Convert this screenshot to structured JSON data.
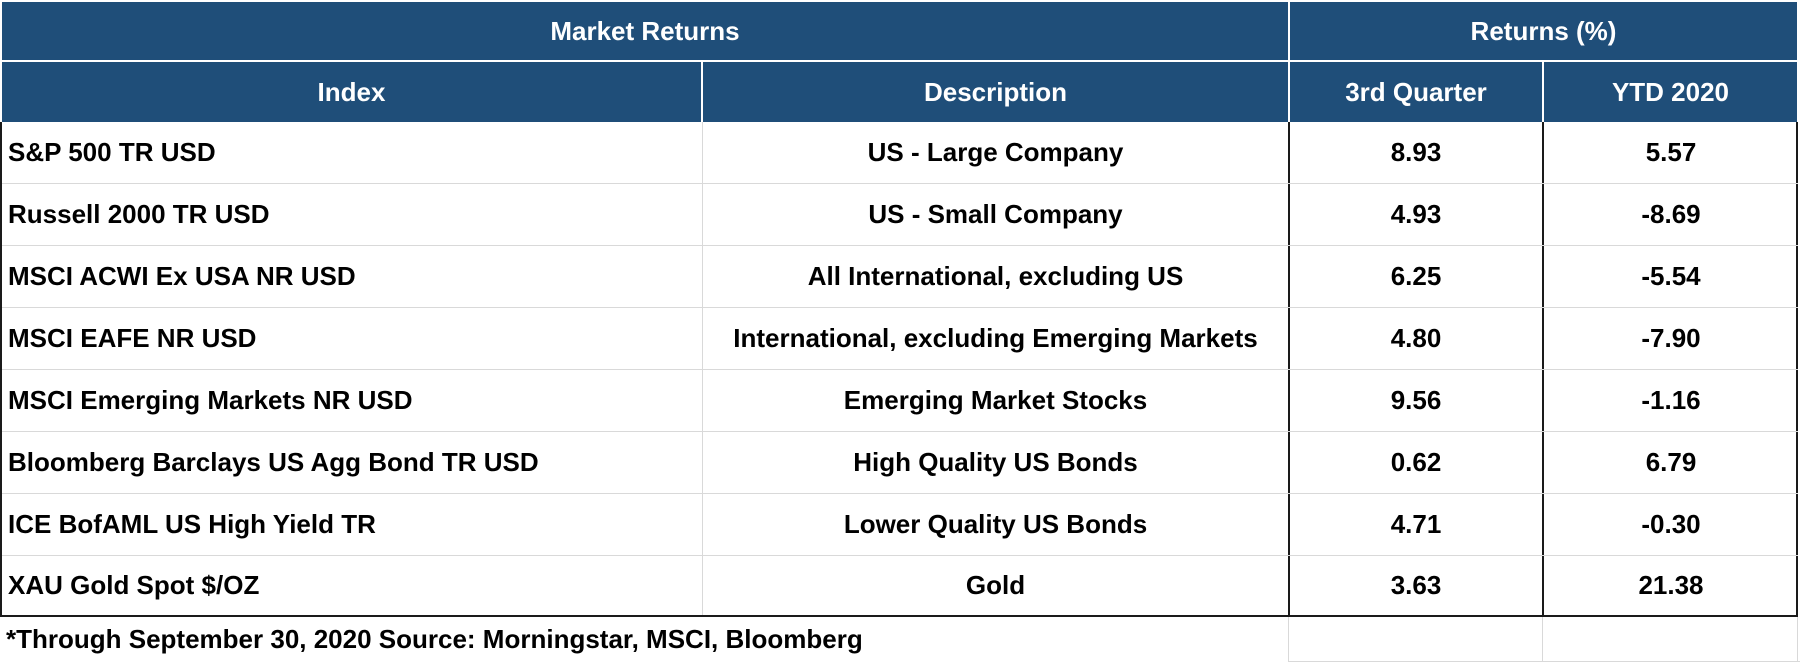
{
  "header": {
    "group_left": "Market Returns",
    "group_right": "Returns (%)",
    "columns": {
      "index": "Index",
      "description": "Description",
      "q3": "3rd Quarter",
      "ytd": "YTD 2020"
    }
  },
  "rows": [
    {
      "index": "S&P 500 TR USD",
      "description": "US - Large Company",
      "q3": "8.93",
      "ytd": "5.57"
    },
    {
      "index": "Russell 2000 TR USD",
      "description": "US - Small Company",
      "q3": "4.93",
      "ytd": "-8.69"
    },
    {
      "index": "MSCI ACWI Ex USA NR USD",
      "description": "All International, excluding US",
      "q3": "6.25",
      "ytd": "-5.54"
    },
    {
      "index": "MSCI EAFE NR USD",
      "description": "International, excluding Emerging Markets",
      "q3": "4.80",
      "ytd": "-7.90"
    },
    {
      "index": "MSCI Emerging Markets NR USD",
      "description": "Emerging Market Stocks",
      "q3": "9.56",
      "ytd": "-1.16"
    },
    {
      "index": "Bloomberg Barclays US Agg Bond TR USD",
      "description": "High Quality US Bonds",
      "q3": "0.62",
      "ytd": "6.79"
    },
    {
      "index": "ICE BofAML US High Yield TR",
      "description": "Lower Quality US Bonds",
      "q3": "4.71",
      "ytd": "-0.30"
    },
    {
      "index": "XAU Gold Spot $/OZ",
      "description": "Gold",
      "q3": "3.63",
      "ytd": "21.38"
    }
  ],
  "footer": {
    "note": "*Through September 30, 2020 Source: Morningstar, MSCI, Bloomberg"
  },
  "colors": {
    "header_bg": "#1F4E79",
    "header_text": "#FFFFFF"
  }
}
